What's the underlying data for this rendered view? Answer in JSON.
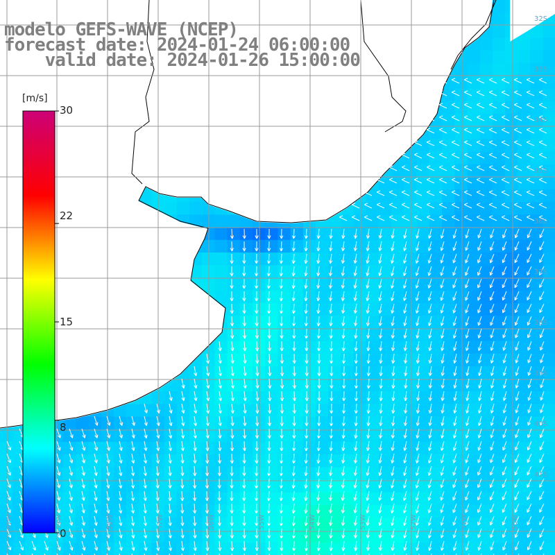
{
  "title": {
    "line1": "modelo GEFS-WAVE (NCEP)",
    "line2": "forecast date: 2024-01-24 06:00:00",
    "line3": "    valid date: 2024-01-26 15:00:00"
  },
  "colorbar": {
    "unit": "[m/s]",
    "ticks": [
      "30",
      "22",
      "15",
      "8",
      "0"
    ],
    "tick_values": [
      30,
      22,
      15,
      8,
      0
    ],
    "range": [
      0,
      30
    ],
    "colors": [
      "#0000ff",
      "#00ffff",
      "#00ff00",
      "#ffff00",
      "#ff0000",
      "#cc0077"
    ]
  },
  "map": {
    "lon_labels": [
      "61W",
      "59W",
      "58W",
      "57W",
      "56W",
      "55W",
      "54W",
      "53W",
      "52W",
      "51W",
      "50W"
    ],
    "lat_labels": [
      "32S",
      "33S",
      "34S",
      "35S",
      "36S",
      "37S",
      "38S",
      "39S",
      "40S",
      "41S"
    ],
    "land_color": "#ffffff",
    "grid_color": "#999999",
    "vector_color": "#ffffff",
    "wind_direction": "southward / south-westward flow",
    "wind_speed_range_ms": [
      2,
      12
    ]
  }
}
